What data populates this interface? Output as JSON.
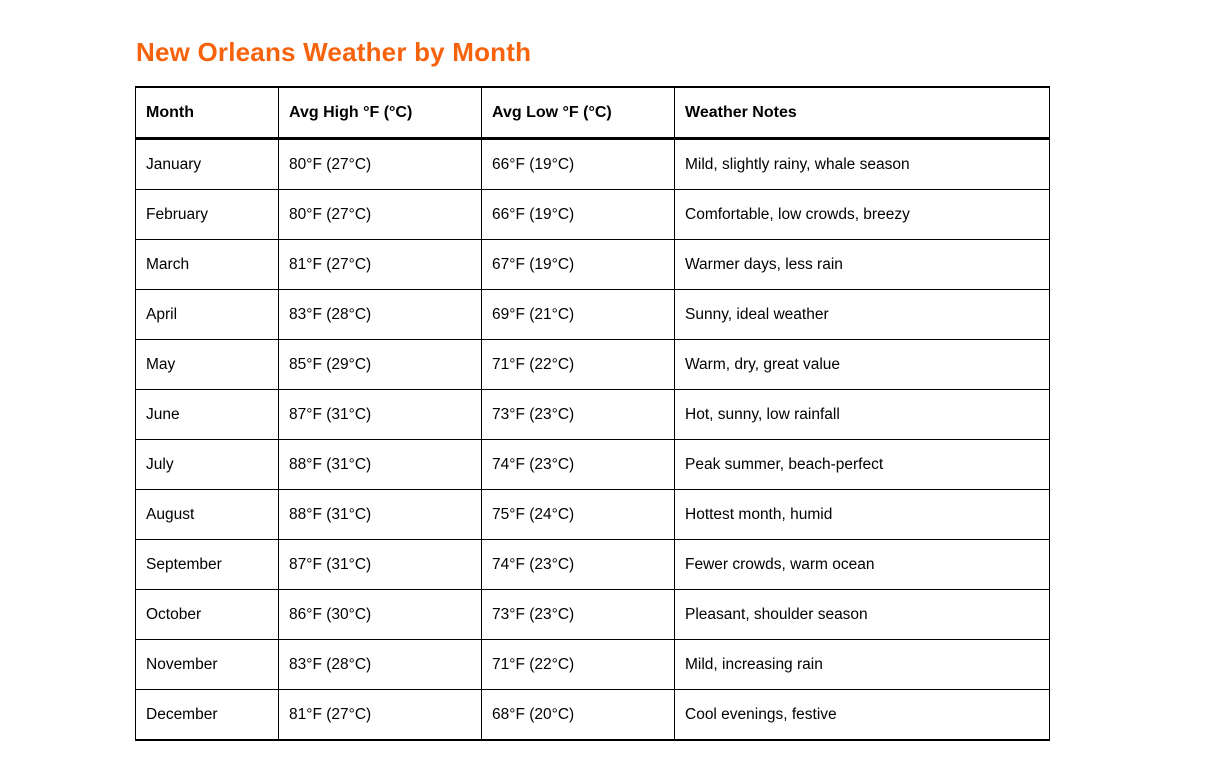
{
  "page": {
    "title": "New Orleans Weather by Month"
  },
  "colors": {
    "title": "#F7630C",
    "border": "#000000",
    "text": "#000000",
    "background": "#FFFFFF"
  },
  "table": {
    "columns": [
      "Month",
      "Avg High °F (°C)",
      "Avg Low °F (°C)",
      "Weather Notes"
    ],
    "rows": [
      {
        "month": "January",
        "avg_high": "80°F (27°C)",
        "avg_low": "66°F (19°C)",
        "notes": "Mild, slightly rainy, whale season"
      },
      {
        "month": "February",
        "avg_high": "80°F (27°C)",
        "avg_low": "66°F (19°C)",
        "notes": "Comfortable, low crowds, breezy"
      },
      {
        "month": "March",
        "avg_high": "81°F (27°C)",
        "avg_low": "67°F (19°C)",
        "notes": "Warmer days, less rain"
      },
      {
        "month": "April",
        "avg_high": "83°F (28°C)",
        "avg_low": "69°F (21°C)",
        "notes": "Sunny, ideal weather"
      },
      {
        "month": "May",
        "avg_high": "85°F (29°C)",
        "avg_low": "71°F (22°C)",
        "notes": "Warm, dry, great value"
      },
      {
        "month": "June",
        "avg_high": "87°F (31°C)",
        "avg_low": "73°F (23°C)",
        "notes": "Hot, sunny, low rainfall"
      },
      {
        "month": "July",
        "avg_high": "88°F (31°C)",
        "avg_low": "74°F (23°C)",
        "notes": "Peak summer, beach-perfect"
      },
      {
        "month": "August",
        "avg_high": "88°F (31°C)",
        "avg_low": "75°F (24°C)",
        "notes": "Hottest month, humid"
      },
      {
        "month": "September",
        "avg_high": "87°F (31°C)",
        "avg_low": "74°F (23°C)",
        "notes": "Fewer crowds, warm ocean"
      },
      {
        "month": "October",
        "avg_high": "86°F (30°C)",
        "avg_low": "73°F (23°C)",
        "notes": "Pleasant, shoulder season"
      },
      {
        "month": "November",
        "avg_high": "83°F (28°C)",
        "avg_low": "71°F (22°C)",
        "notes": "Mild, increasing rain"
      },
      {
        "month": "December",
        "avg_high": "81°F (27°C)",
        "avg_low": "68°F (20°C)",
        "notes": "Cool evenings, festive"
      }
    ]
  }
}
